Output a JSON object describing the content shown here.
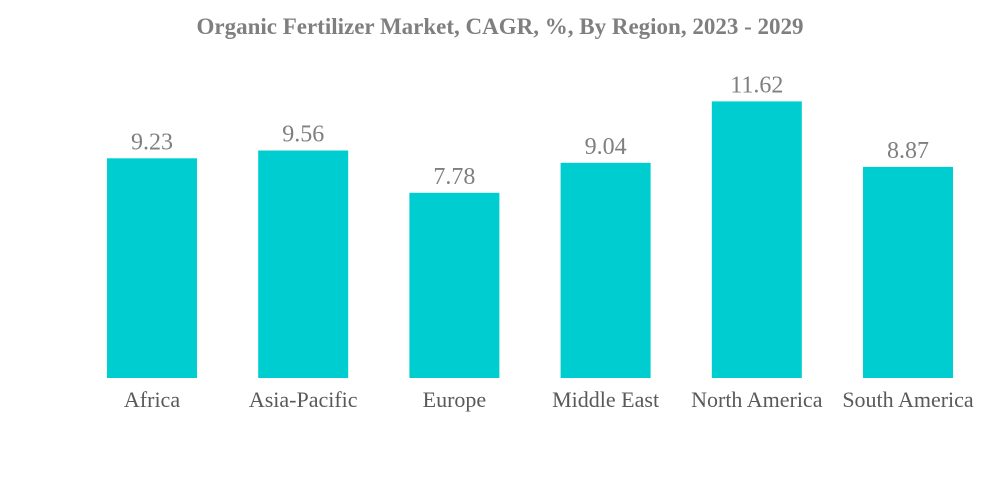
{
  "chart_data": {
    "type": "bar",
    "title": "Organic Fertilizer Market, CAGR, %, By Region, 2023 - 2029",
    "categories": [
      "Africa",
      "Asia-Pacific",
      "Europe",
      "Middle East",
      "North America",
      "South America"
    ],
    "values": [
      9.23,
      9.56,
      7.78,
      9.04,
      11.62,
      8.87
    ],
    "value_labels": [
      "9.23",
      "9.56",
      "7.78",
      "9.04",
      "11.62",
      "8.87"
    ],
    "xlabel": "",
    "ylabel": "",
    "ylim": [
      0,
      13
    ],
    "grid": false,
    "legend": "none",
    "bar_color": "#00cdd0"
  }
}
